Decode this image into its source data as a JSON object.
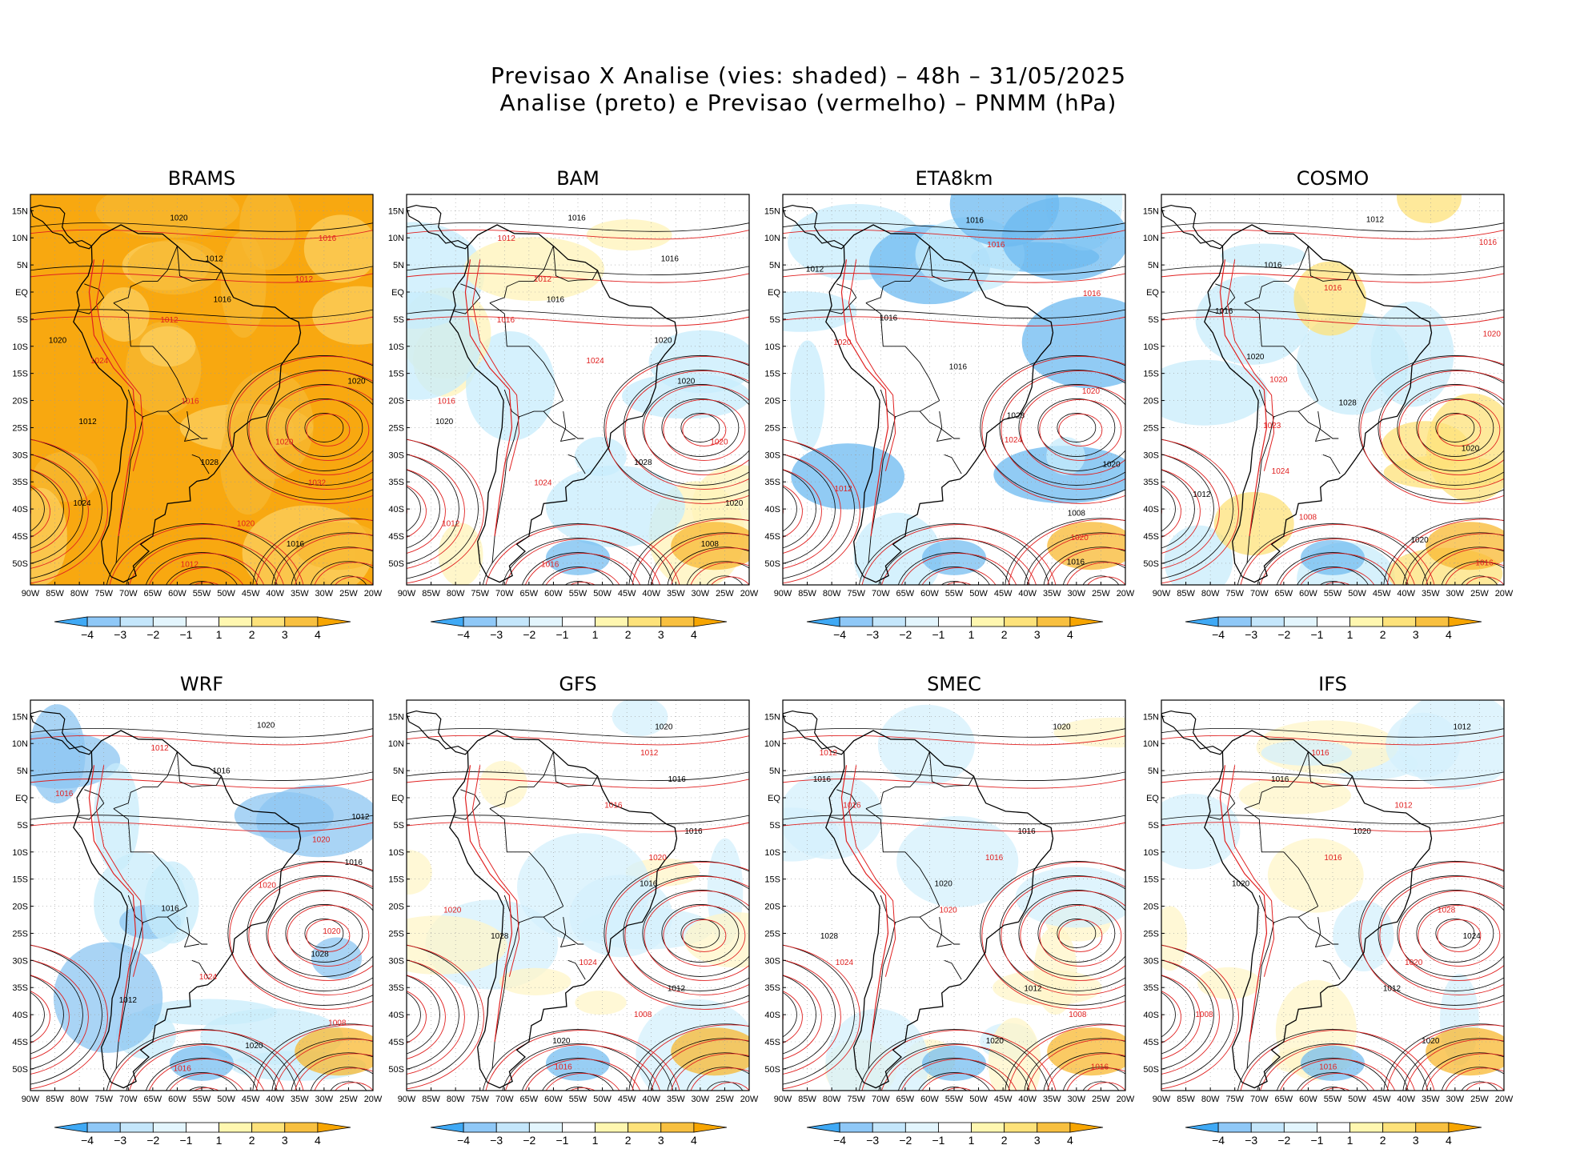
{
  "figure": {
    "title_line1": "Previsao X Analise (vies: shaded) – 48h – 31/05/2025",
    "title_line2": "Analise (preto) e Previsao (vermelho) – PNMM (hPa)"
  },
  "map": {
    "lat_labels": [
      "15N",
      "10N",
      "5N",
      "EQ",
      "5S",
      "10S",
      "15S",
      "20S",
      "25S",
      "30S",
      "35S",
      "40S",
      "45S",
      "50S"
    ],
    "lon_labels": [
      "90W",
      "85W",
      "80W",
      "75W",
      "70W",
      "65W",
      "60W",
      "55W",
      "50W",
      "45W",
      "40W",
      "35W",
      "30W",
      "25W",
      "20W"
    ]
  },
  "colorbar": {
    "labels": [
      "−4",
      "−3",
      "−2",
      "−1",
      "1",
      "2",
      "3",
      "4"
    ],
    "colors": [
      "#3fa9f5",
      "#8fc8f7",
      "#c4e6fb",
      "#e3f5fd",
      "#ffffff",
      "#fff7b0",
      "#fde27a",
      "#f8c040",
      "#f7a500"
    ]
  },
  "panels": [
    {
      "name": "BRAMS",
      "bias": "warm",
      "isobars": [
        "1020",
        "1016",
        "1012",
        "1012",
        "1016",
        "1012",
        "1020",
        "1024",
        "1020",
        "1016",
        "1012",
        "1020",
        "1028",
        "1032",
        "1024",
        "1020",
        "1016",
        "1012"
      ]
    },
    {
      "name": "BAM",
      "bias": "mixed",
      "isobars": [
        "1016",
        "1012",
        "1016",
        "1012",
        "1016",
        "1016",
        "1020",
        "1024",
        "1020",
        "1016",
        "1020",
        "1020",
        "1028",
        "1024",
        "1020",
        "1012",
        "1008",
        "1016"
      ]
    },
    {
      "name": "ETA8km",
      "bias": "cool",
      "isobars": [
        "1016",
        "1016",
        "1012",
        "1016",
        "1016",
        "1020",
        "1016",
        "1020",
        "1028",
        "1024",
        "1020",
        "1012",
        "1008",
        "1020",
        "1016"
      ]
    },
    {
      "name": "COSMO",
      "bias": "cool-north",
      "isobars": [
        "1012",
        "1016",
        "1016",
        "1016",
        "1016",
        "1020",
        "1020",
        "1020",
        "1028",
        "1023",
        "1020",
        "1024",
        "1012",
        "1008",
        "1020",
        "1016"
      ]
    },
    {
      "name": "WRF",
      "bias": "cool-south",
      "isobars": [
        "1020",
        "1012",
        "1016",
        "1016",
        "1012",
        "1020",
        "1016",
        "1020",
        "1016",
        "1020",
        "1028",
        "1024",
        "1012",
        "1008",
        "1020",
        "1016"
      ]
    },
    {
      "name": "GFS",
      "bias": "neutral",
      "isobars": [
        "1020",
        "1012",
        "1016",
        "1016",
        "1016",
        "1020",
        "1016",
        "1020",
        "1028",
        "1024",
        "1012",
        "1008",
        "1020",
        "1016"
      ]
    },
    {
      "name": "SMEC",
      "bias": "neutral",
      "isobars": [
        "1020",
        "1012",
        "1016",
        "1016",
        "1016",
        "1016",
        "1020",
        "1020",
        "1028",
        "1024",
        "1012",
        "1008",
        "1020",
        "1016"
      ]
    },
    {
      "name": "IFS",
      "bias": "neutral",
      "isobars": [
        "1012",
        "1016",
        "1016",
        "1012",
        "1020",
        "1016",
        "1020",
        "1028",
        "1024",
        "1020",
        "1012",
        "1008",
        "1020",
        "1016"
      ]
    }
  ]
}
